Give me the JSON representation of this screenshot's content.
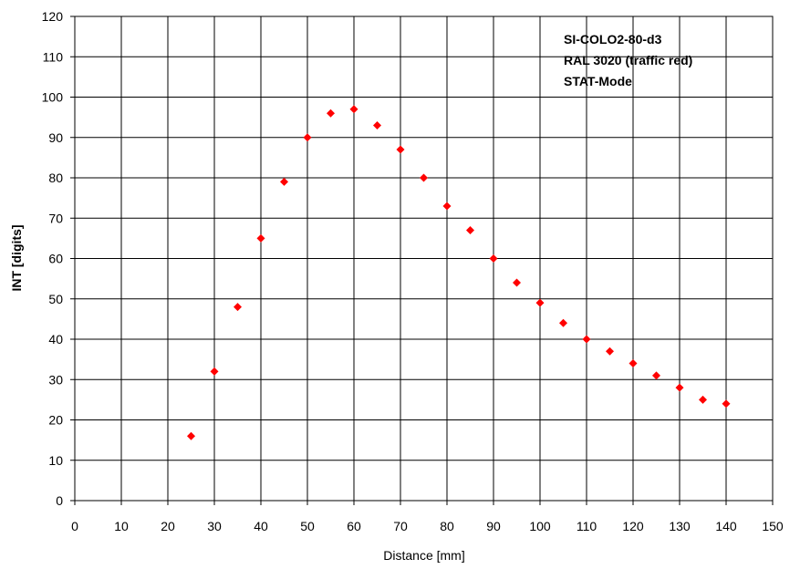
{
  "chart_data": {
    "type": "scatter",
    "xlabel": "Distance [mm]",
    "ylabel": "INT [digits]",
    "xlim": [
      0,
      150
    ],
    "ylim": [
      0,
      120
    ],
    "x_ticks": [
      0,
      10,
      20,
      30,
      40,
      50,
      60,
      70,
      80,
      90,
      100,
      110,
      120,
      130,
      140,
      150
    ],
    "y_ticks": [
      0,
      10,
      20,
      30,
      40,
      50,
      60,
      70,
      80,
      90,
      100,
      110,
      120
    ],
    "grid": true,
    "annotations": [
      "SI-COLO2-80-d3",
      "RAL 3020 (traffic red)",
      "STAT-Mode"
    ],
    "series": [
      {
        "color": "#ff0000",
        "marker": "diamond",
        "x": [
          25,
          30,
          35,
          40,
          45,
          50,
          55,
          60,
          65,
          70,
          75,
          80,
          85,
          90,
          95,
          100,
          105,
          110,
          115,
          120,
          125,
          130,
          135,
          140
        ],
        "y": [
          16,
          32,
          48,
          65,
          79,
          90,
          96,
          97,
          93,
          87,
          80,
          73,
          67,
          60,
          54,
          49,
          44,
          40,
          37,
          34,
          31,
          28,
          25,
          24
        ]
      }
    ]
  }
}
